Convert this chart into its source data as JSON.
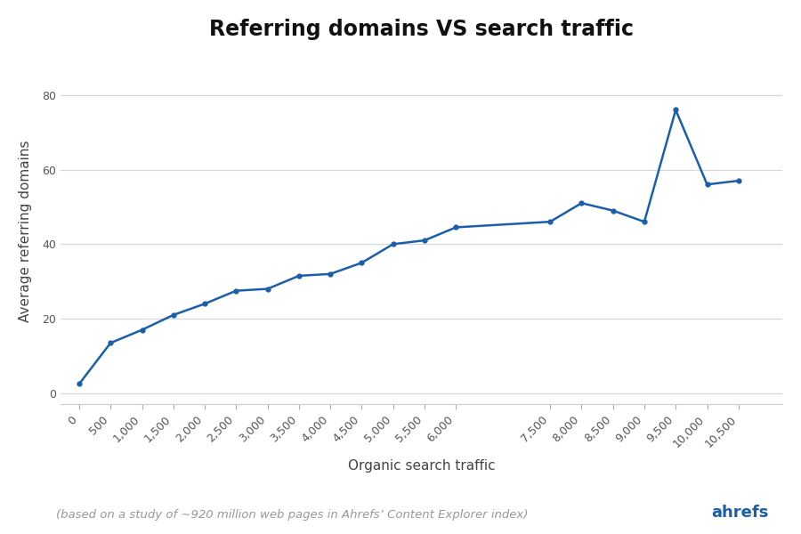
{
  "x_data": [
    0,
    500,
    1000,
    1500,
    2000,
    2500,
    3000,
    3500,
    4000,
    4500,
    5000,
    5500,
    6000,
    7500,
    8000,
    8500,
    9000,
    9500,
    10000,
    10500
  ],
  "y_data": [
    2.5,
    13.5,
    17,
    21,
    24,
    27.5,
    28,
    31.5,
    32,
    35,
    40,
    41,
    44.5,
    46,
    51,
    49,
    46,
    76,
    56,
    57
  ],
  "line_color": "#1b5faa",
  "line_width": 1.8,
  "marker": "o",
  "marker_size": 3.5,
  "title": "Referring domains VS search traffic",
  "title_fontsize": 17,
  "title_fontweight": "bold",
  "xlabel": "Organic search traffic",
  "ylabel": "Average referring domains",
  "xlabel_fontsize": 11,
  "ylabel_fontsize": 11,
  "xticks": [
    0,
    500,
    1000,
    1500,
    2000,
    2500,
    3000,
    3500,
    4000,
    4500,
    5000,
    5500,
    6000,
    7500,
    8000,
    8500,
    9000,
    9500,
    10000,
    10500
  ],
  "xtick_labels": [
    "0",
    "500",
    "1,000",
    "1,500",
    "2,000",
    "2,500",
    "3,000",
    "3,500",
    "4,000",
    "4,500",
    "5,000",
    "5,500",
    "6,000",
    "7,500",
    "8,000",
    "8,500",
    "9,000",
    "9,500",
    "10,000",
    "10,500"
  ],
  "yticks": [
    0,
    20,
    40,
    60,
    80
  ],
  "xlim": [
    -300,
    11200
  ],
  "ylim": [
    -3,
    90
  ],
  "grid_color": "#cccccc",
  "grid_alpha": 0.8,
  "grid_linewidth": 0.8,
  "bg_color": "#ffffff",
  "spine_color": "#cccccc",
  "tick_color": "#aaaaaa",
  "tick_label_color": "#555555",
  "tick_fontsize": 9,
  "footer_text": "(based on a study of ~920 million web pages in Ahrefs’ Content Explorer index)",
  "footer_brand": "ahrefs",
  "footer_fontsize": 9.5,
  "footer_brand_fontsize": 13,
  "footer_color": "#999999",
  "footer_brand_color": "#1b5faa"
}
